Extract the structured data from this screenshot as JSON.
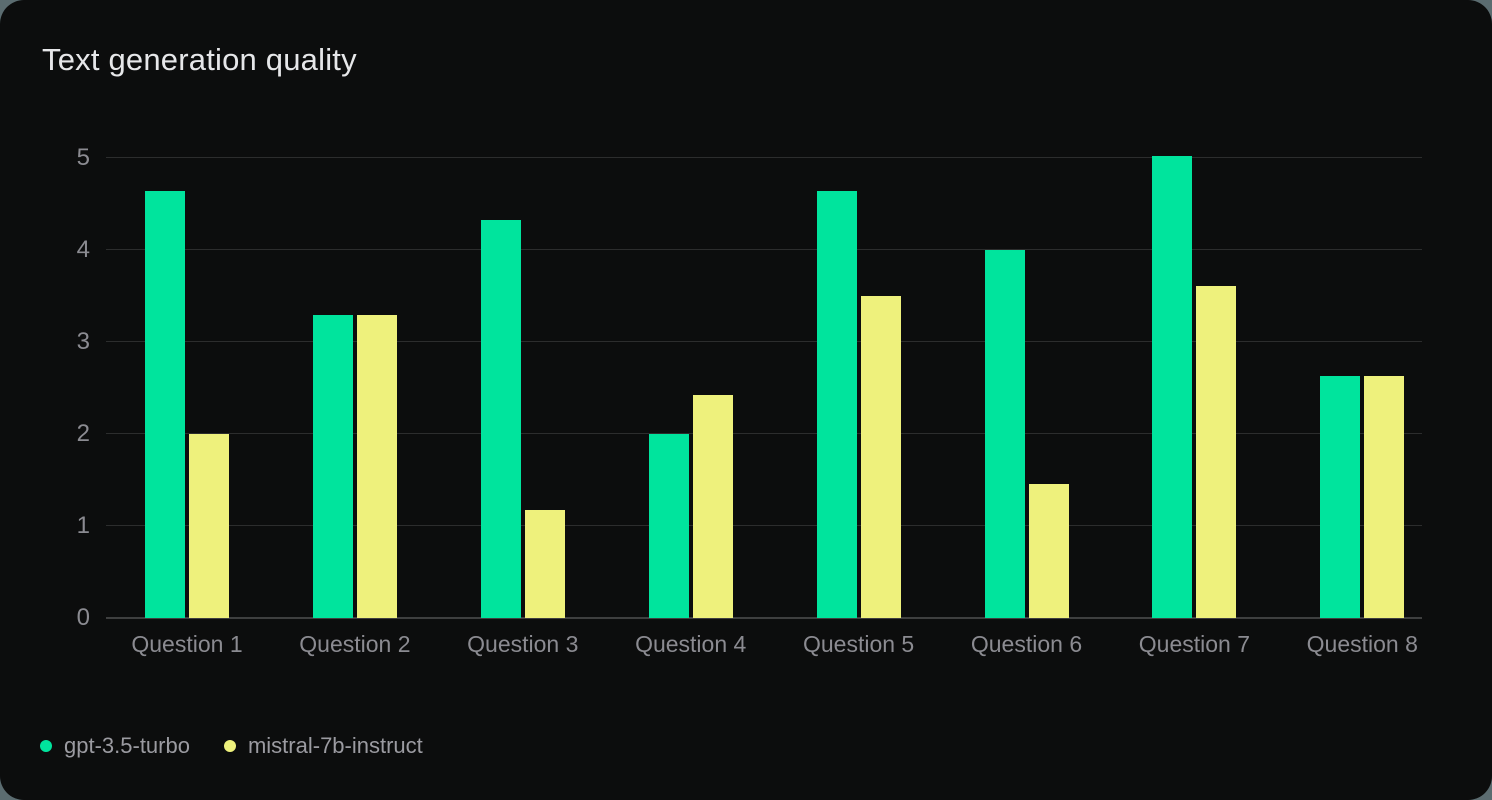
{
  "title": "Text generation quality",
  "colors": {
    "card_background": "#0c0d0d",
    "page_background": "#5b6c70",
    "title_text": "#e6e7e9",
    "axis_text": "#8b8b91",
    "legend_text": "#9b9ba1",
    "gridline": "#2c2d2d",
    "zero_line": "#3e3f3f",
    "series_green": "#00e49d",
    "series_yellow": "#eef17c"
  },
  "legend": {
    "items": [
      {
        "label": "gpt-3.5-turbo",
        "color": "#00e49d"
      },
      {
        "label": "mistral-7b-instruct",
        "color": "#eef17c"
      }
    ]
  },
  "chart_data": {
    "type": "bar",
    "title": "Text generation quality",
    "categories": [
      "Question 1",
      "Question 2",
      "Question 3",
      "Question 4",
      "Question 5",
      "Question 6",
      "Question 7",
      "Question 8"
    ],
    "series": [
      {
        "name": "gpt-3.5-turbo",
        "color": "#00e49d",
        "values": [
          4.64,
          3.29,
          4.33,
          2.0,
          4.64,
          4.0,
          5.02,
          2.63
        ]
      },
      {
        "name": "mistral-7b-instruct",
        "color": "#eef17c",
        "values": [
          2.0,
          3.29,
          1.17,
          2.42,
          3.5,
          1.46,
          3.61,
          2.63
        ]
      }
    ],
    "xlabel": "",
    "ylabel": "",
    "ylim": [
      0,
      5
    ],
    "y_ticks": [
      0,
      1,
      2,
      3,
      4,
      5
    ],
    "grid": true,
    "legend_position": "bottom-left"
  }
}
